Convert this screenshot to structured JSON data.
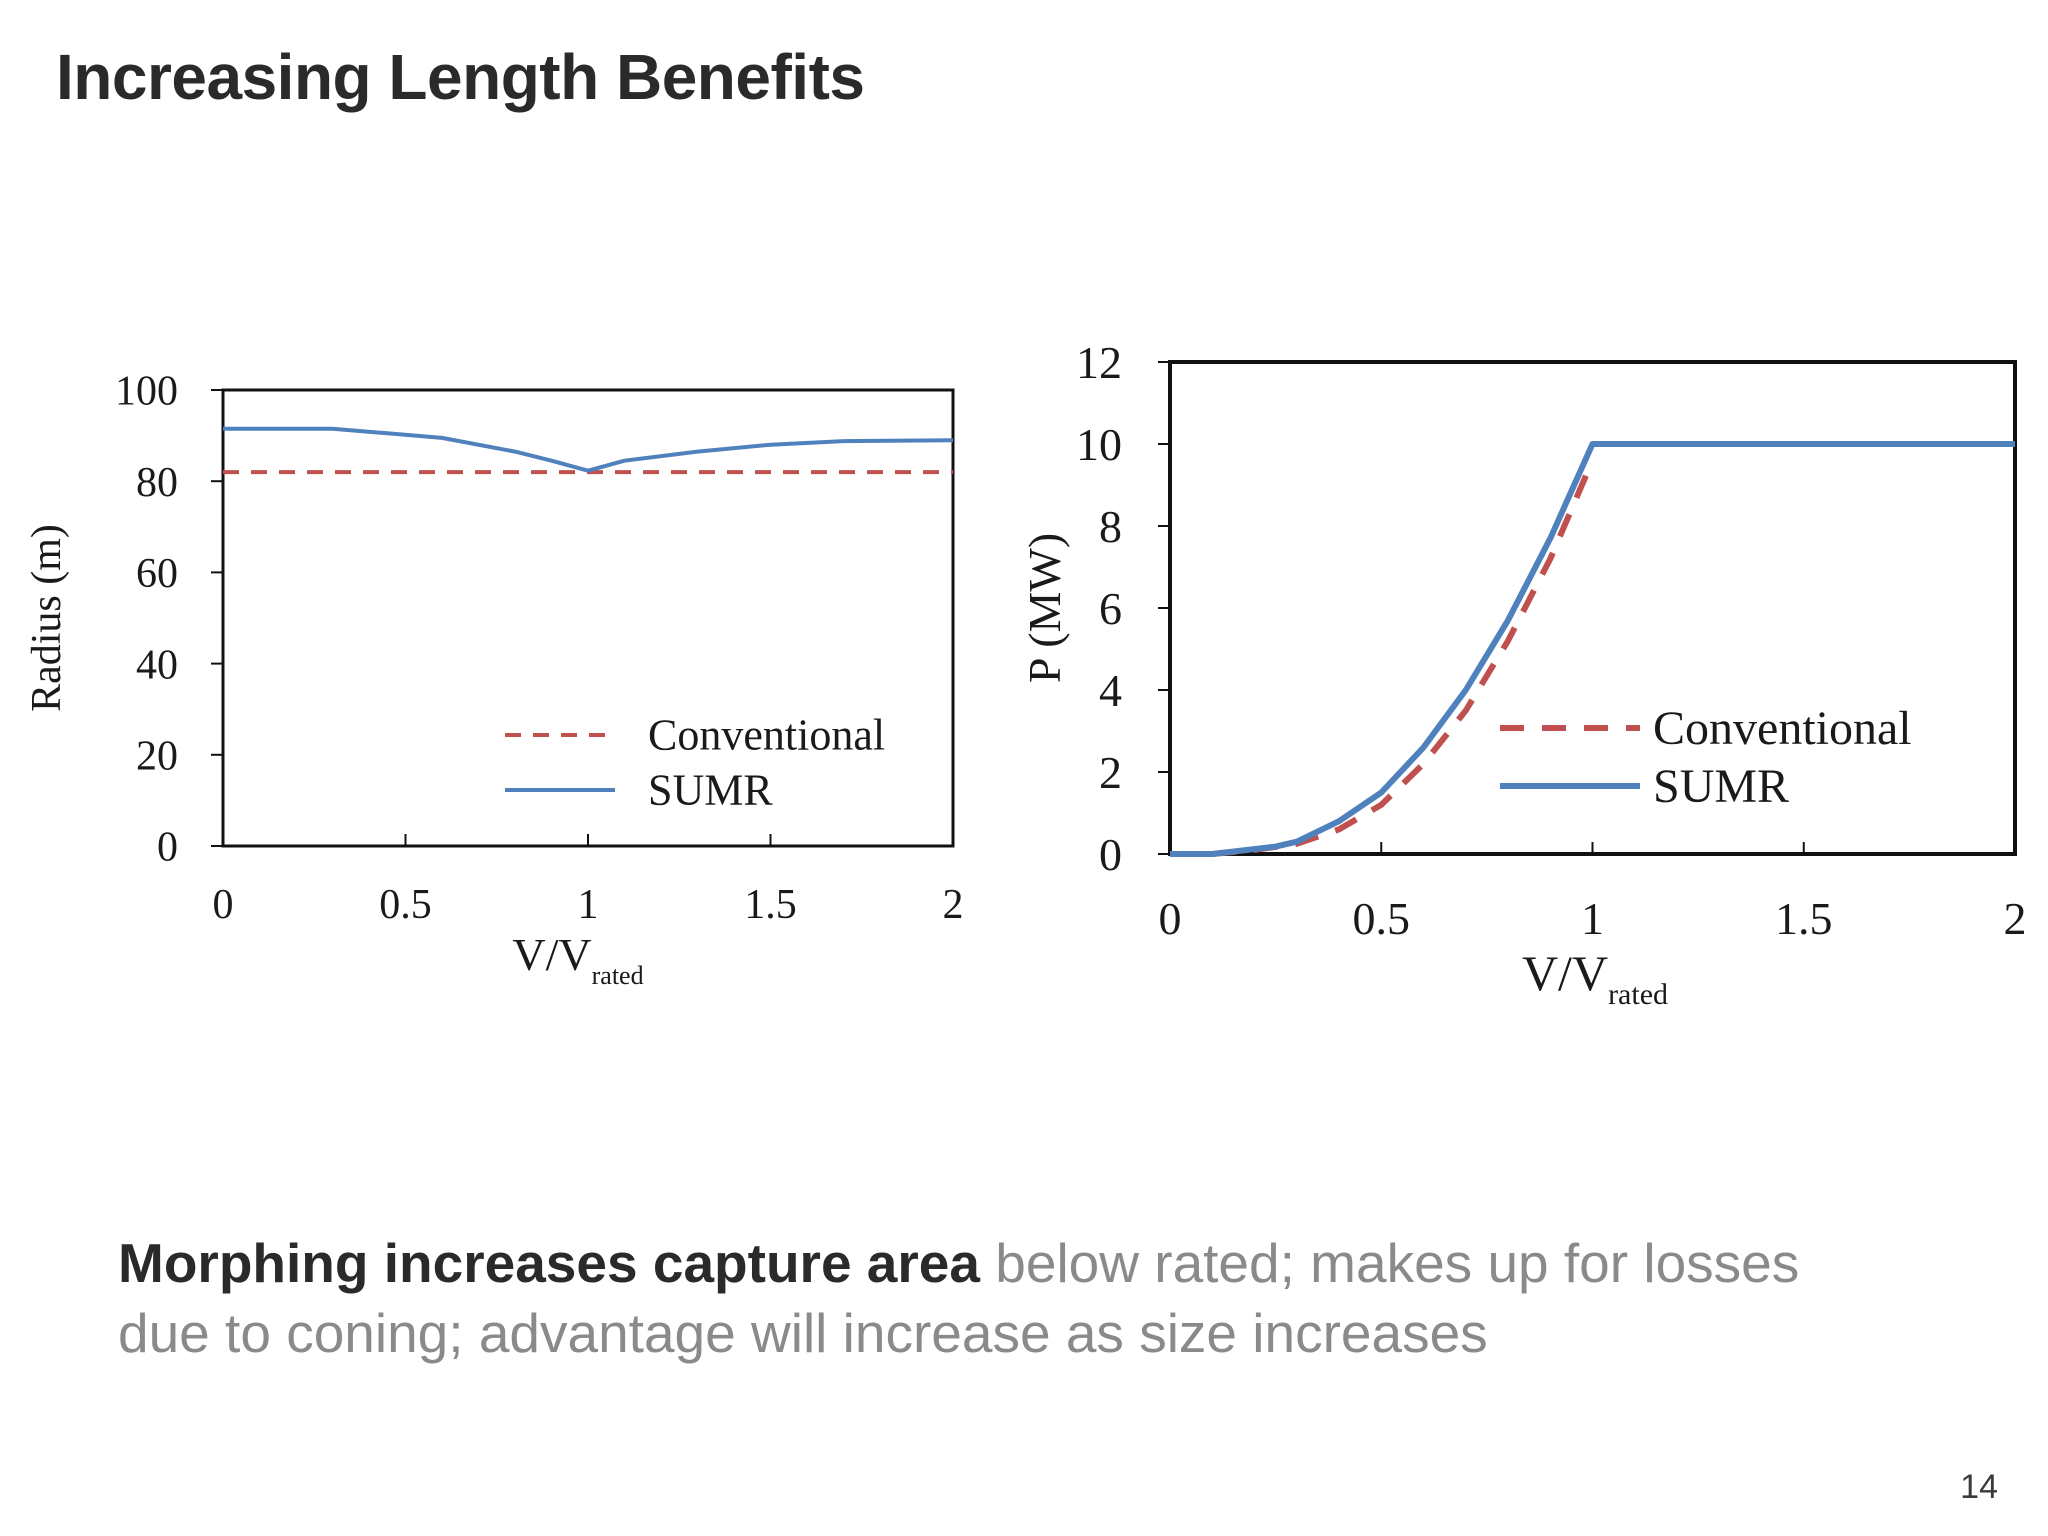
{
  "slide": {
    "title": "Increasing Length Benefits",
    "caption_bold": "Morphing increases capture area",
    "caption_rest": " below rated; makes up for losses due to coning; advantage will increase as size increases",
    "page_number": "14"
  },
  "chart_data": [
    {
      "type": "line",
      "title": "",
      "xlabel": "V/V",
      "xlabel_sub": "rated",
      "ylabel": "Radius (m)",
      "xlim": [
        0,
        2
      ],
      "ylim": [
        0,
        100
      ],
      "xticks": [
        0,
        0.5,
        1,
        1.5,
        2
      ],
      "xtick_labels": [
        "0",
        "0.5",
        "1",
        "1.5",
        "2"
      ],
      "yticks": [
        0,
        20,
        40,
        60,
        80,
        100
      ],
      "ytick_labels": [
        "0",
        "20",
        "40",
        "60",
        "80",
        "100"
      ],
      "grid": false,
      "legend_position": "bottom-right",
      "series": [
        {
          "name": "Conventional",
          "color": "#c0504d",
          "style": "dashed",
          "x": [
            0,
            0.5,
            1,
            1.5,
            2
          ],
          "y": [
            82,
            82,
            82,
            82,
            82
          ]
        },
        {
          "name": "SUMR",
          "color": "#4f81bd",
          "style": "solid",
          "x": [
            0,
            0.1,
            0.3,
            0.45,
            0.6,
            0.8,
            0.9,
            1.0,
            1.1,
            1.3,
            1.5,
            1.7,
            2.0
          ],
          "y": [
            91.5,
            91.5,
            91.5,
            90.5,
            89.5,
            86.5,
            84.5,
            82.3,
            84.5,
            86.5,
            88.0,
            88.8,
            89.0
          ]
        }
      ]
    },
    {
      "type": "line",
      "title": "",
      "xlabel": "V/V",
      "xlabel_sub": "rated",
      "ylabel": "P (MW)",
      "xlim": [
        0,
        2
      ],
      "ylim": [
        0,
        12
      ],
      "xticks": [
        0,
        0.5,
        1,
        1.5,
        2
      ],
      "xtick_labels": [
        "0",
        "0.5",
        "1",
        "1.5",
        "2"
      ],
      "yticks": [
        0,
        2,
        4,
        6,
        8,
        10,
        12
      ],
      "ytick_labels": [
        "0",
        "2",
        "4",
        "6",
        "8",
        "10",
        "12"
      ],
      "grid": false,
      "legend_position": "bottom-right",
      "series": [
        {
          "name": "Conventional",
          "color": "#c0504d",
          "style": "dashed",
          "x": [
            0,
            0.1,
            0.2,
            0.3,
            0.4,
            0.5,
            0.6,
            0.7,
            0.8,
            0.9,
            1.0
          ],
          "y": [
            0,
            0,
            0.1,
            0.25,
            0.6,
            1.2,
            2.2,
            3.5,
            5.2,
            7.2,
            9.6
          ]
        },
        {
          "name": "SUMR",
          "color": "#4f81bd",
          "style": "solid",
          "x": [
            0,
            0.1,
            0.25,
            0.3,
            0.4,
            0.5,
            0.6,
            0.7,
            0.8,
            0.9,
            1.0,
            1.5,
            2.0
          ],
          "y": [
            0,
            0,
            0.18,
            0.3,
            0.8,
            1.5,
            2.6,
            4.0,
            5.7,
            7.7,
            10,
            10,
            10
          ]
        }
      ]
    }
  ]
}
